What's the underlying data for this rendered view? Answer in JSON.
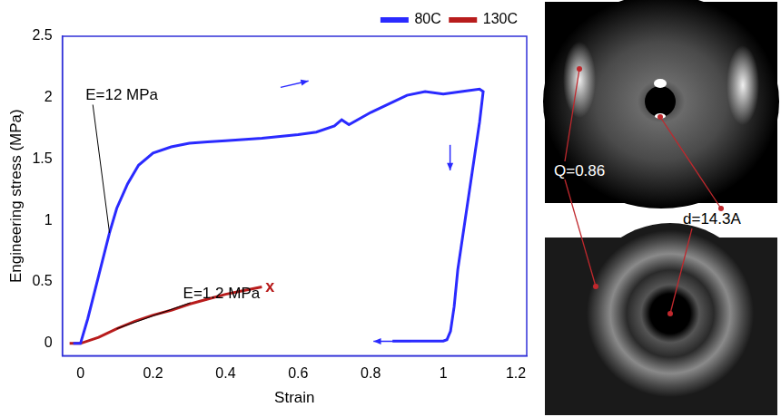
{
  "chart_data": {
    "type": "line",
    "x_label": "Strain",
    "y_label": "Engineering stress (MPa)",
    "xlim": [
      -0.05,
      1.23
    ],
    "xticks": [
      0,
      0.2,
      0.4,
      0.6,
      0.8,
      1,
      1.2
    ],
    "ylim": [
      -0.1,
      2.5
    ],
    "yticks": [
      0,
      0.5,
      1,
      1.5,
      2,
      2.5
    ],
    "grid": false,
    "legend": "top right",
    "series": [
      {
        "name": "80C",
        "color": "#2a2aff",
        "x": [
          -0.02,
          0,
          0.02,
          0.05,
          0.08,
          0.1,
          0.13,
          0.16,
          0.2,
          0.25,
          0.3,
          0.35,
          0.4,
          0.5,
          0.6,
          0.65,
          0.7,
          0.72,
          0.74,
          0.8,
          0.85,
          0.9,
          0.95,
          1.0,
          1.05,
          1.1,
          1.11,
          1.1,
          1.08,
          1.06,
          1.04,
          1.03,
          1.02,
          1.01,
          1.0,
          0.95,
          0.9,
          0.86
        ],
        "values": [
          0,
          0,
          0.2,
          0.55,
          0.9,
          1.1,
          1.3,
          1.45,
          1.55,
          1.6,
          1.63,
          1.64,
          1.65,
          1.67,
          1.7,
          1.72,
          1.77,
          1.82,
          1.78,
          1.88,
          1.95,
          2.02,
          2.05,
          2.03,
          2.05,
          2.07,
          2.05,
          1.8,
          1.4,
          1.0,
          0.6,
          0.3,
          0.1,
          0.03,
          0.02,
          0.02,
          0.02,
          0.02
        ]
      },
      {
        "name": "130C",
        "color": "#b81c1c",
        "x": [
          -0.03,
          0,
          0.05,
          0.1,
          0.15,
          0.2,
          0.25,
          0.3,
          0.35,
          0.4,
          0.45,
          0.5
        ],
        "values": [
          0,
          0,
          0.05,
          0.12,
          0.18,
          0.23,
          0.27,
          0.32,
          0.36,
          0.4,
          0.43,
          0.46
        ]
      }
    ],
    "annotations": [
      {
        "text": "E=12 MPa",
        "series": "80C"
      },
      {
        "text": "E=1.2 MPa",
        "series": "130C"
      },
      {
        "text": "x",
        "series": "130C"
      }
    ]
  },
  "insets": {
    "labels": [
      "Q=0.86",
      "d=14.3A"
    ]
  }
}
